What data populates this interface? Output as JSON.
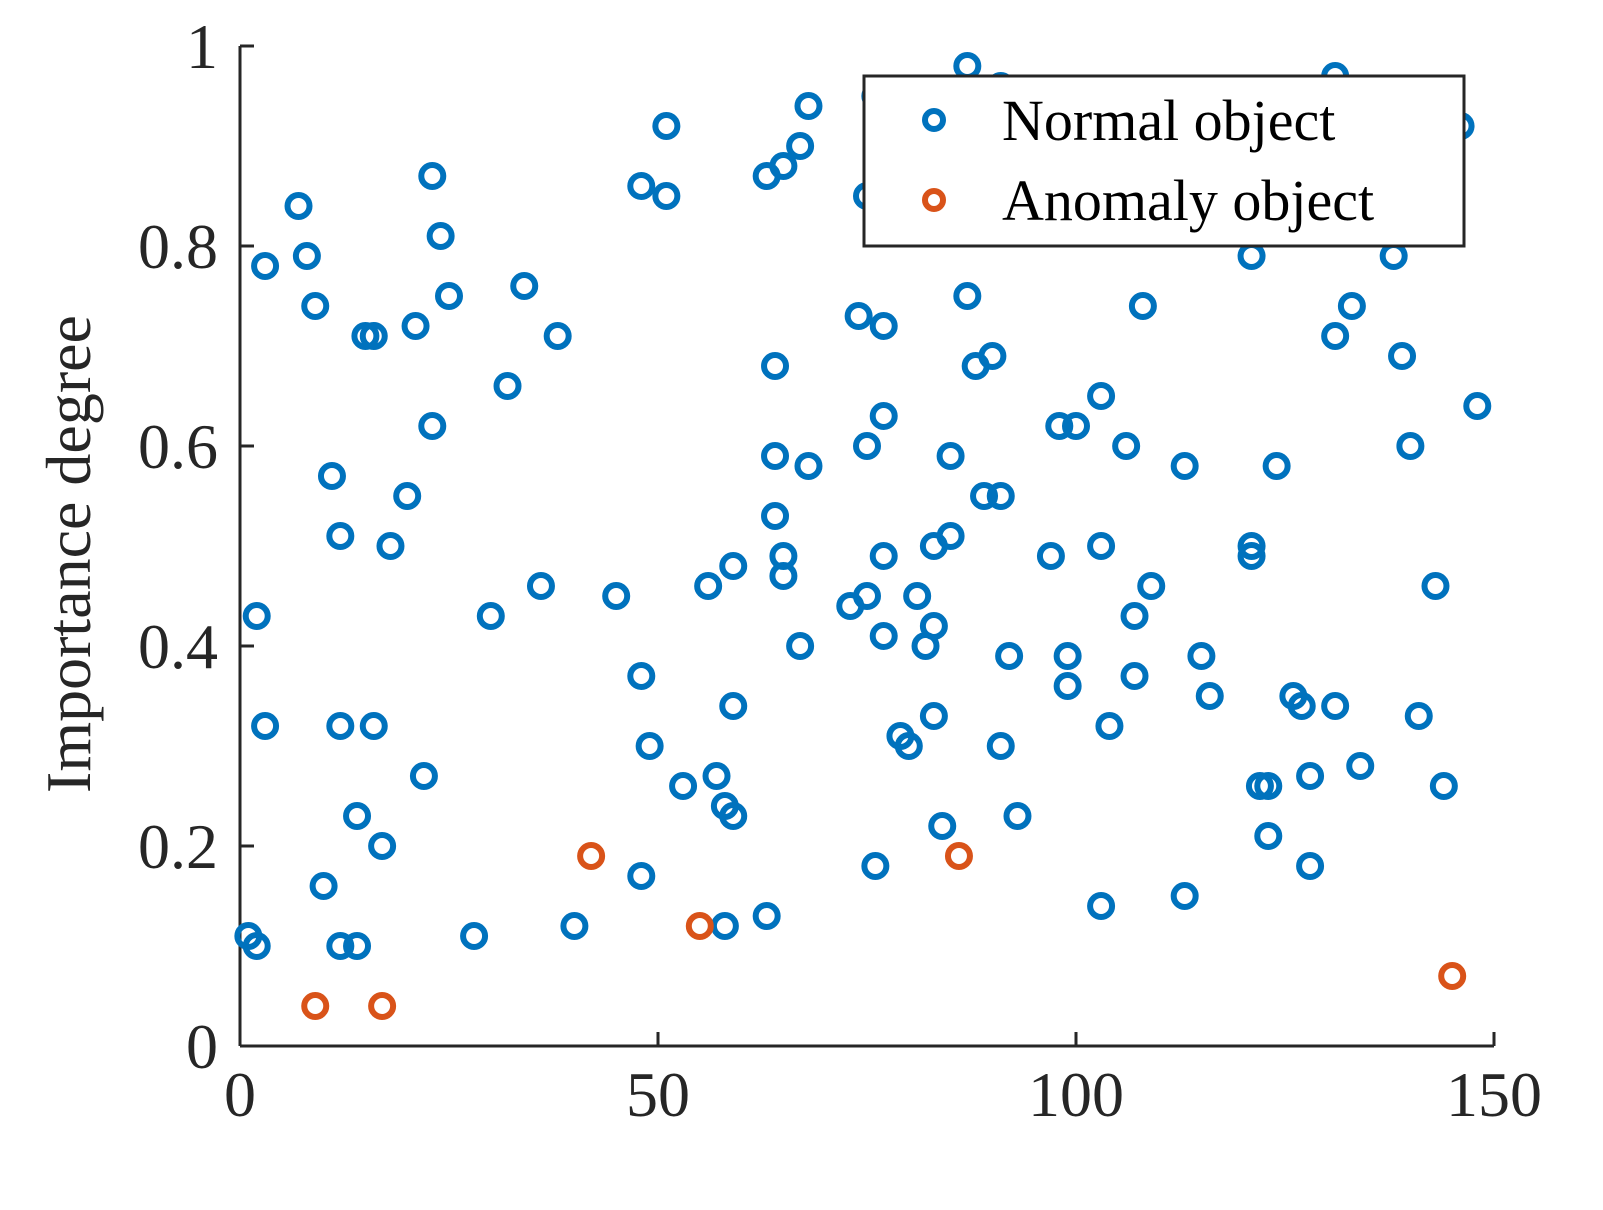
{
  "chart_data": {
    "type": "scatter",
    "title": "",
    "xlabel": "",
    "ylabel": "Importance degree",
    "xlim": [
      0,
      150
    ],
    "ylim": [
      0,
      1
    ],
    "grid": false,
    "legend_position": "top-right",
    "x_ticks": [
      "0",
      "50",
      "100",
      "150"
    ],
    "y_ticks": [
      "0",
      "0.2",
      "0.4",
      "0.6",
      "0.8",
      "1"
    ],
    "series": [
      {
        "name": "Normal object",
        "color": "#0072BD",
        "marker": "circle",
        "points": [
          [
            1,
            0.11
          ],
          [
            2,
            0.1
          ],
          [
            2,
            0.43
          ],
          [
            3,
            0.78
          ],
          [
            3,
            0.32
          ],
          [
            7,
            0.84
          ],
          [
            8,
            0.79
          ],
          [
            9,
            0.74
          ],
          [
            10,
            0.16
          ],
          [
            11,
            0.57
          ],
          [
            12,
            0.51
          ],
          [
            12,
            0.32
          ],
          [
            12,
            0.1
          ],
          [
            14,
            0.1
          ],
          [
            14,
            0.23
          ],
          [
            15,
            0.71
          ],
          [
            16,
            0.71
          ],
          [
            16,
            0.32
          ],
          [
            17,
            0.2
          ],
          [
            18,
            0.5
          ],
          [
            20,
            0.55
          ],
          [
            21,
            0.72
          ],
          [
            22,
            0.27
          ],
          [
            23,
            0.87
          ],
          [
            23,
            0.62
          ],
          [
            24,
            0.81
          ],
          [
            25,
            0.75
          ],
          [
            28,
            0.11
          ],
          [
            30,
            0.43
          ],
          [
            32,
            0.66
          ],
          [
            34,
            0.76
          ],
          [
            36,
            0.46
          ],
          [
            38,
            0.71
          ],
          [
            40,
            0.12
          ],
          [
            45,
            0.45
          ],
          [
            48,
            0.86
          ],
          [
            48,
            0.37
          ],
          [
            48,
            0.17
          ],
          [
            49,
            0.3
          ],
          [
            51,
            0.92
          ],
          [
            51,
            0.85
          ],
          [
            53,
            0.26
          ],
          [
            56,
            0.46
          ],
          [
            57,
            0.27
          ],
          [
            58,
            0.24
          ],
          [
            58,
            0.12
          ],
          [
            59,
            0.48
          ],
          [
            59,
            0.34
          ],
          [
            59,
            0.23
          ],
          [
            63,
            0.87
          ],
          [
            63,
            0.13
          ],
          [
            64,
            0.68
          ],
          [
            64,
            0.59
          ],
          [
            64,
            0.53
          ],
          [
            65,
            0.88
          ],
          [
            65,
            0.49
          ],
          [
            65,
            0.47
          ],
          [
            67,
            0.9
          ],
          [
            67,
            0.4
          ],
          [
            68,
            0.94
          ],
          [
            68,
            0.58
          ],
          [
            73,
            0.44
          ],
          [
            74,
            0.73
          ],
          [
            75,
            0.85
          ],
          [
            75,
            0.6
          ],
          [
            75,
            0.45
          ],
          [
            76,
            0.95
          ],
          [
            76,
            0.18
          ],
          [
            77,
            0.72
          ],
          [
            77,
            0.63
          ],
          [
            77,
            0.49
          ],
          [
            77,
            0.41
          ],
          [
            79,
            0.31
          ],
          [
            80,
            0.3
          ],
          [
            81,
            0.45
          ],
          [
            82,
            0.4
          ],
          [
            83,
            0.5
          ],
          [
            83,
            0.42
          ],
          [
            83,
            0.33
          ],
          [
            84,
            0.22
          ],
          [
            85,
            0.59
          ],
          [
            85,
            0.51
          ],
          [
            87,
            0.98
          ],
          [
            87,
            0.75
          ],
          [
            88,
            0.68
          ],
          [
            89,
            0.55
          ],
          [
            90,
            0.69
          ],
          [
            91,
            0.96
          ],
          [
            91,
            0.55
          ],
          [
            91,
            0.3
          ],
          [
            92,
            0.39
          ],
          [
            93,
            0.23
          ],
          [
            97,
            0.49
          ],
          [
            98,
            0.62
          ],
          [
            99,
            0.39
          ],
          [
            99,
            0.36
          ],
          [
            100,
            0.62
          ],
          [
            103,
            0.65
          ],
          [
            103,
            0.5
          ],
          [
            103,
            0.14
          ],
          [
            104,
            0.32
          ],
          [
            106,
            0.6
          ],
          [
            107,
            0.43
          ],
          [
            107,
            0.37
          ],
          [
            108,
            0.74
          ],
          [
            109,
            0.46
          ],
          [
            113,
            0.58
          ],
          [
            113,
            0.15
          ],
          [
            115,
            0.39
          ],
          [
            116,
            0.35
          ],
          [
            121,
            0.79
          ],
          [
            121,
            0.5
          ],
          [
            121,
            0.49
          ],
          [
            122,
            0.26
          ],
          [
            123,
            0.26
          ],
          [
            123,
            0.21
          ],
          [
            124,
            0.58
          ],
          [
            126,
            0.35
          ],
          [
            127,
            0.34
          ],
          [
            128,
            0.27
          ],
          [
            128,
            0.18
          ],
          [
            131,
            0.97
          ],
          [
            131,
            0.71
          ],
          [
            131,
            0.34
          ],
          [
            133,
            0.74
          ],
          [
            134,
            0.28
          ],
          [
            138,
            0.79
          ],
          [
            139,
            0.69
          ],
          [
            140,
            0.6
          ],
          [
            141,
            0.33
          ],
          [
            143,
            0.46
          ],
          [
            144,
            0.26
          ],
          [
            146,
            0.92
          ],
          [
            148,
            0.64
          ]
        ]
      },
      {
        "name": "Anomaly object",
        "color": "#D95319",
        "marker": "circle",
        "points": [
          [
            9,
            0.04
          ],
          [
            17,
            0.04
          ],
          [
            42,
            0.19
          ],
          [
            55,
            0.12
          ],
          [
            86,
            0.19
          ],
          [
            145,
            0.07
          ]
        ]
      }
    ]
  }
}
